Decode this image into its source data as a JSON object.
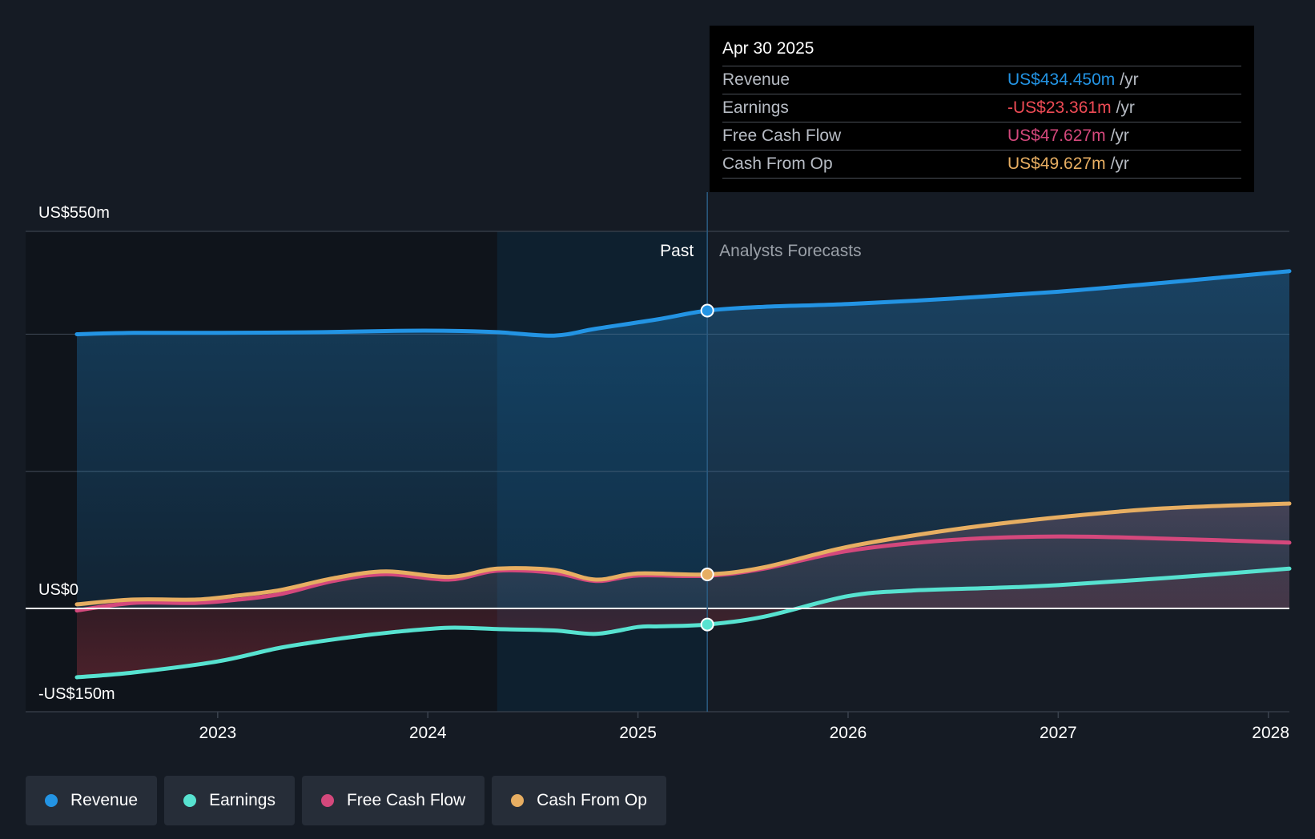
{
  "colors": {
    "revenue": "#2394e4",
    "earnings": "#57e2d0",
    "free_cash_flow": "#d4487c",
    "cash_from_op": "#e7ae62",
    "negative": "#ee4b55",
    "background": "#151b24"
  },
  "tooltip": {
    "date": "Apr 30 2025",
    "rows": [
      {
        "label": "Revenue",
        "value": "US$434.450m",
        "unit": "/yr",
        "color": "#2394e4"
      },
      {
        "label": "Earnings",
        "value": "-US$23.361m",
        "unit": "/yr",
        "color": "#ee4b55"
      },
      {
        "label": "Free Cash Flow",
        "value": "US$47.627m",
        "unit": "/yr",
        "color": "#d4487c"
      },
      {
        "label": "Cash From Op",
        "value": "US$49.627m",
        "unit": "/yr",
        "color": "#e7ae62"
      }
    ]
  },
  "legend": [
    {
      "label": "Revenue",
      "color": "#2394e4"
    },
    {
      "label": "Earnings",
      "color": "#57e2d0"
    },
    {
      "label": "Free Cash Flow",
      "color": "#d4487c"
    },
    {
      "label": "Cash From Op",
      "color": "#e7ae62"
    }
  ],
  "chart_data": {
    "type": "line",
    "title": "",
    "y_unit": "US$m",
    "ylim": [
      -150,
      550
    ],
    "y_labels": [
      {
        "value": 550,
        "label": "US$550m"
      },
      {
        "value": 0,
        "label": "US$0"
      },
      {
        "value": -150,
        "label": "-US$150m"
      }
    ],
    "gridlines": [
      550,
      400,
      200,
      0,
      -150
    ],
    "xlim": [
      2022.33,
      2028.1
    ],
    "x_ticks": [
      {
        "value": 2023,
        "label": "2023"
      },
      {
        "value": 2024,
        "label": "2024"
      },
      {
        "value": 2025,
        "label": "2025"
      },
      {
        "value": 2026,
        "label": "2026"
      },
      {
        "value": 2027,
        "label": "2027"
      },
      {
        "value": 2028,
        "label": "2028"
      }
    ],
    "past_label": "Past",
    "forecast_label": "Analysts Forecasts",
    "highlight_start": 2024.33,
    "divider_x": 2025.33,
    "series": [
      {
        "name": "Revenue",
        "key": "revenue",
        "past": [
          [
            2022.33,
            400
          ],
          [
            2022.6,
            402
          ],
          [
            2023.0,
            402
          ],
          [
            2023.5,
            403
          ],
          [
            2023.85,
            405
          ],
          [
            2024.1,
            405
          ],
          [
            2024.33,
            403
          ],
          [
            2024.6,
            398
          ],
          [
            2024.8,
            408
          ],
          [
            2025.1,
            422
          ],
          [
            2025.33,
            434.45
          ]
        ],
        "forecast": [
          [
            2025.33,
            434.45
          ],
          [
            2025.6,
            440
          ],
          [
            2026.0,
            444
          ],
          [
            2026.5,
            452
          ],
          [
            2027.0,
            462
          ],
          [
            2027.5,
            475
          ],
          [
            2028.1,
            492
          ]
        ]
      },
      {
        "name": "Earnings",
        "key": "earnings",
        "past": [
          [
            2022.33,
            -100
          ],
          [
            2022.6,
            -93
          ],
          [
            2023.0,
            -77
          ],
          [
            2023.3,
            -57
          ],
          [
            2023.6,
            -43
          ],
          [
            2023.85,
            -34
          ],
          [
            2024.1,
            -28
          ],
          [
            2024.33,
            -30
          ],
          [
            2024.6,
            -32
          ],
          [
            2024.8,
            -37
          ],
          [
            2025.0,
            -27
          ],
          [
            2025.1,
            -26
          ],
          [
            2025.33,
            -23.361
          ]
        ],
        "forecast": [
          [
            2025.33,
            -23.361
          ],
          [
            2025.6,
            -12
          ],
          [
            2026.0,
            18
          ],
          [
            2026.3,
            26
          ],
          [
            2026.7,
            30
          ],
          [
            2027.0,
            34
          ],
          [
            2027.5,
            44
          ],
          [
            2028.1,
            58
          ]
        ]
      },
      {
        "name": "Free Cash Flow",
        "key": "free_cash_flow",
        "past": [
          [
            2022.33,
            -3
          ],
          [
            2022.6,
            8
          ],
          [
            2022.9,
            8
          ],
          [
            2023.1,
            13
          ],
          [
            2023.3,
            21
          ],
          [
            2023.55,
            40
          ],
          [
            2023.8,
            50
          ],
          [
            2024.1,
            42
          ],
          [
            2024.33,
            55
          ],
          [
            2024.6,
            52
          ],
          [
            2024.8,
            40
          ],
          [
            2025.0,
            48
          ],
          [
            2025.33,
            47.627
          ]
        ],
        "forecast": [
          [
            2025.33,
            47.627
          ],
          [
            2025.6,
            58
          ],
          [
            2026.0,
            84
          ],
          [
            2026.5,
            100
          ],
          [
            2027.0,
            105
          ],
          [
            2027.5,
            102
          ],
          [
            2028.1,
            96
          ]
        ]
      },
      {
        "name": "Cash From Op",
        "key": "cash_from_op",
        "past": [
          [
            2022.33,
            6
          ],
          [
            2022.6,
            13
          ],
          [
            2022.9,
            13
          ],
          [
            2023.1,
            19
          ],
          [
            2023.3,
            27
          ],
          [
            2023.55,
            44
          ],
          [
            2023.8,
            54
          ],
          [
            2024.1,
            46
          ],
          [
            2024.33,
            58
          ],
          [
            2024.6,
            56
          ],
          [
            2024.8,
            42
          ],
          [
            2025.0,
            51
          ],
          [
            2025.33,
            49.627
          ]
        ],
        "forecast": [
          [
            2025.33,
            49.627
          ],
          [
            2025.6,
            60
          ],
          [
            2026.0,
            90
          ],
          [
            2026.5,
            115
          ],
          [
            2027.0,
            133
          ],
          [
            2027.5,
            146
          ],
          [
            2028.1,
            153
          ]
        ]
      }
    ]
  }
}
